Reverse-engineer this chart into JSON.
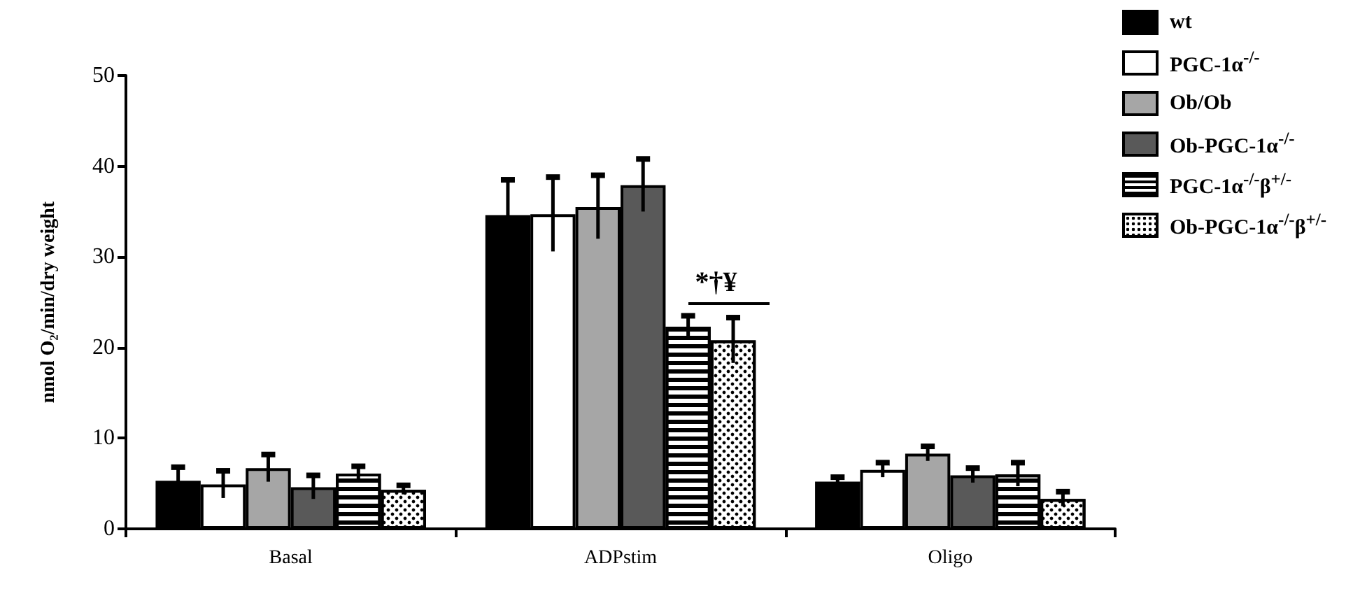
{
  "chart_data": {
    "type": "bar",
    "ylabel": "nmol O₂/min/dry weight",
    "categories": [
      "Basal",
      "ADPstim",
      "Oligo"
    ],
    "ylim": [
      0,
      50
    ],
    "yticks": [
      0,
      10,
      20,
      30,
      40,
      50
    ],
    "grid": false,
    "legend": "top right",
    "series": [
      {
        "name": "wt",
        "color": "#000000",
        "values": [
          5.3,
          34.6,
          5.2
        ],
        "errors": [
          1.5,
          3.9,
          0.5
        ]
      },
      {
        "name": "PGC-1α$^{-/-}$",
        "color": "#ffffff",
        "values": [
          4.9,
          34.7,
          6.5
        ],
        "errors": [
          1.5,
          4.1,
          0.8
        ]
      },
      {
        "name": "Ob/Ob",
        "color": "#a6a6a6",
        "values": [
          6.7,
          35.5,
          8.3
        ],
        "errors": [
          1.5,
          3.5,
          0.8
        ]
      },
      {
        "name": "Ob-PGC-1α$^{-/-}$",
        "color": "#595959",
        "values": [
          4.6,
          37.9,
          5.9
        ],
        "errors": [
          1.3,
          2.9,
          0.8
        ]
      },
      {
        "name": "PGC-1α$^{-/-}$β$^{+/-}$",
        "color": "#ffffff",
        "values": [
          6.1,
          22.3,
          6.0
        ],
        "errors": [
          0.8,
          1.2,
          1.3
        ]
      },
      {
        "name": "Ob-PGC-1α$^{-/-}$β$^{+/-}$",
        "color": "#ffffff",
        "values": [
          4.3,
          20.8,
          3.3
        ],
        "errors": [
          0.5,
          2.5,
          0.8
        ]
      }
    ],
    "annotations": [
      {
        "text": "*†¥",
        "x": "ADPstim",
        "y": 24.9
      }
    ]
  }
}
